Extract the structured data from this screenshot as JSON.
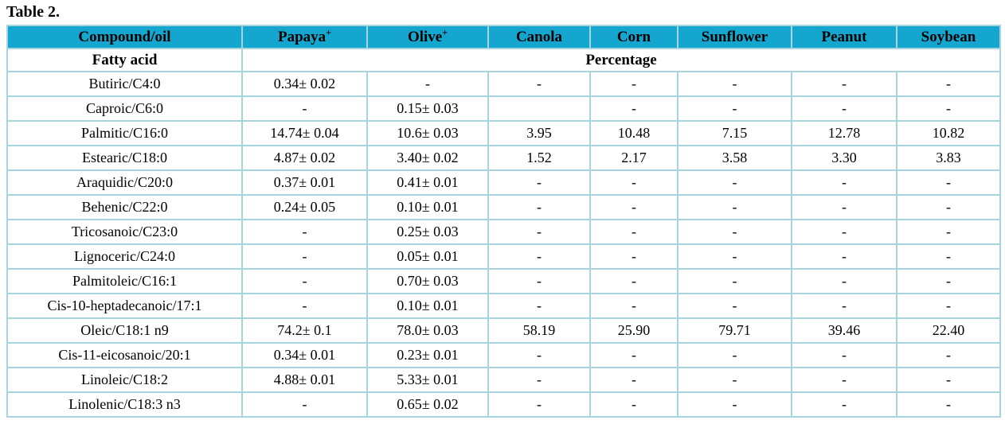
{
  "title": "Table 2.",
  "colors": {
    "header_bg": "#14a6ce",
    "grid_border": "#a6d4e1",
    "text": "#000000"
  },
  "table": {
    "columns": [
      {
        "label": "Compound/oil",
        "sup": ""
      },
      {
        "label": "Papaya",
        "sup": "+"
      },
      {
        "label": "Olive",
        "sup": "+"
      },
      {
        "label": "Canola",
        "sup": ""
      },
      {
        "label": "Corn",
        "sup": ""
      },
      {
        "label": "Sunflower",
        "sup": ""
      },
      {
        "label": "Peanut",
        "sup": ""
      },
      {
        "label": "Soybean",
        "sup": ""
      }
    ],
    "subheader": {
      "fatty_acid": "Fatty acid",
      "percentage": "Percentage"
    },
    "rows": [
      [
        "Butiric/C4:0",
        "0.34± 0.02",
        "-",
        "-",
        "-",
        "-",
        "-",
        "-"
      ],
      [
        "Caproic/C6:0",
        "-",
        "0.15± 0.03",
        "",
        "-",
        "-",
        "-",
        "-"
      ],
      [
        "Palmitic/C16:0",
        "14.74± 0.04",
        "10.6± 0.03",
        "3.95",
        "10.48",
        "7.15",
        "12.78",
        "10.82"
      ],
      [
        "Estearic/C18:0",
        "4.87± 0.02",
        "3.40± 0.02",
        "1.52",
        "2.17",
        "3.58",
        "3.30",
        "3.83"
      ],
      [
        "Araquidic/C20:0",
        "0.37± 0.01",
        "0.41± 0.01",
        "-",
        "-",
        "-",
        "-",
        "-"
      ],
      [
        "Behenic/C22:0",
        "0.24± 0.05",
        "0.10± 0.01",
        "-",
        "-",
        "-",
        "-",
        "-"
      ],
      [
        "Tricosanoic/C23:0",
        "-",
        "0.25± 0.03",
        "-",
        "-",
        "-",
        "-",
        "-"
      ],
      [
        "Lignoceric/C24:0",
        "-",
        "0.05± 0.01",
        "-",
        "-",
        "-",
        "-",
        "-"
      ],
      [
        "Palmitoleic/C16:1",
        "-",
        "0.70± 0.03",
        "-",
        "-",
        "-",
        "-",
        "-"
      ],
      [
        "Cis-10-heptadecanoic/17:1",
        "-",
        "0.10± 0.01",
        "-",
        "-",
        "-",
        "-",
        "-"
      ],
      [
        "Oleic/C18:1 n9",
        "74.2± 0.1",
        "78.0± 0.03",
        "58.19",
        "25.90",
        "79.71",
        "39.46",
        "22.40"
      ],
      [
        "Cis-11-eicosanoic/20:1",
        "0.34± 0.01",
        "0.23± 0.01",
        "-",
        "-",
        "-",
        "-",
        "-"
      ],
      [
        "Linoleic/C18:2",
        "4.88± 0.01",
        "5.33± 0.01",
        "-",
        "-",
        "-",
        "-",
        "-"
      ],
      [
        "Linolenic/C18:3 n3",
        "-",
        "0.65± 0.02",
        "-",
        "-",
        "-",
        "-",
        "-"
      ]
    ]
  }
}
